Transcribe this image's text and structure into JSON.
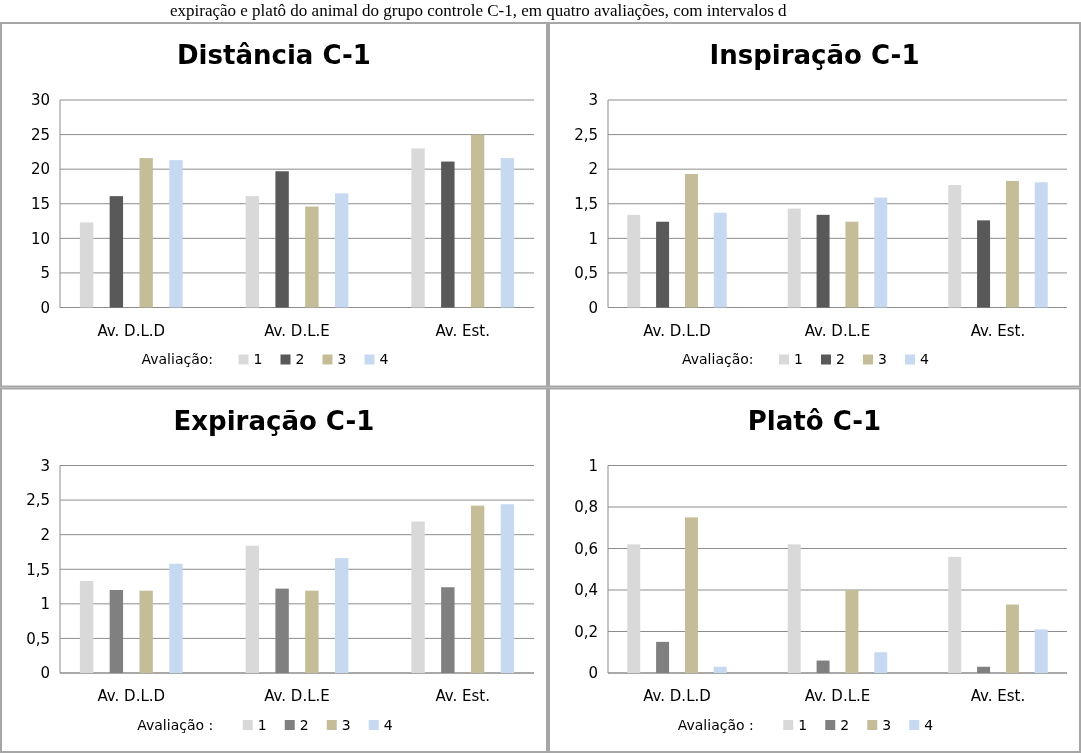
{
  "chart_data": [
    {
      "type": "bar",
      "title": "Distância C-1",
      "annotations": [
        "expiração e platô do animal do grupo controle C-1, em quatro avaliações, com intervalos d"
      ],
      "categories": [
        "Av. D.L.D",
        "Av. D.L.E",
        "Av. Est."
      ],
      "legend_title": "Avaliação:",
      "legend": "bottom",
      "grid": "y",
      "ylim": [
        0,
        30
      ],
      "yticks": [
        0,
        5,
        10,
        15,
        20,
        25,
        30
      ],
      "series": [
        {
          "name": "1",
          "color": "#d9d9d9",
          "values": [
            12.3,
            16.1,
            23
          ]
        },
        {
          "name": "2",
          "color": "#595959",
          "values": [
            16.1,
            19.7,
            21.1
          ]
        },
        {
          "name": "3",
          "color": "#c4bd97",
          "values": [
            21.6,
            14.6,
            25
          ]
        },
        {
          "name": "4",
          "color": "#c6d9f1",
          "values": [
            21.3,
            16.5,
            21.6
          ]
        }
      ]
    },
    {
      "type": "bar",
      "title": "Inspiração C-1",
      "categories": [
        "Av. D.L.D",
        "Av. D.L.E",
        "Av. Est."
      ],
      "legend_title": "Avaliação:",
      "legend": "bottom",
      "grid": "y",
      "ylim": [
        0,
        3
      ],
      "yticks": [
        0,
        {
          "value": 0.5,
          "label": "0,5"
        },
        1,
        {
          "value": 1.5,
          "label": "1,5"
        },
        2,
        {
          "value": 2.5,
          "label": "2,5"
        },
        3
      ],
      "series": [
        {
          "name": "1",
          "color": "#d9d9d9",
          "values": [
            1.34,
            1.43,
            1.77
          ]
        },
        {
          "name": "2",
          "color": "#595959",
          "values": [
            1.24,
            1.34,
            1.26
          ]
        },
        {
          "name": "3",
          "color": "#c4bd97",
          "values": [
            1.93,
            1.24,
            1.83
          ]
        },
        {
          "name": "4",
          "color": "#c6d9f1",
          "values": [
            1.37,
            1.59,
            1.81
          ]
        }
      ]
    },
    {
      "type": "bar",
      "title": "Expiração C-1",
      "categories": [
        "Av. D.L.D",
        "Av. D.L.E",
        "Av. Est."
      ],
      "legend_title": "Avaliação :",
      "legend": "bottom",
      "grid": "y",
      "ylim": [
        0,
        3
      ],
      "yticks": [
        0,
        {
          "value": 0.5,
          "label": "0,5"
        },
        1,
        {
          "value": 1.5,
          "label": "1,5"
        },
        2,
        {
          "value": 2.5,
          "label": "2,5"
        },
        3
      ],
      "series": [
        {
          "name": "1",
          "color": "#d9d9d9",
          "values": [
            1.33,
            1.84,
            2.19
          ]
        },
        {
          "name": "2",
          "color": "#808080",
          "values": [
            1.2,
            1.22,
            1.24
          ]
        },
        {
          "name": "3",
          "color": "#c4bd97",
          "values": [
            1.19,
            1.19,
            2.42
          ]
        },
        {
          "name": "4",
          "color": "#c6d9f1",
          "values": [
            1.58,
            1.66,
            2.44
          ]
        }
      ]
    },
    {
      "type": "bar",
      "title": "Platô C-1",
      "categories": [
        "Av. D.L.D",
        "Av. D.L.E",
        "Av. Est."
      ],
      "legend_title": "Avaliação :",
      "legend": "bottom",
      "grid": "y",
      "ylim": [
        0,
        1
      ],
      "yticks": [
        {
          "value": 0,
          "label": "0"
        },
        {
          "value": 0.2,
          "label": "0,2"
        },
        {
          "value": 0.4,
          "label": "0,4"
        },
        {
          "value": 0.6,
          "label": "0,6"
        },
        {
          "value": 0.8,
          "label": "0,8"
        },
        {
          "value": 1,
          "label": "1"
        }
      ],
      "series": [
        {
          "name": "1",
          "color": "#d9d9d9",
          "values": [
            0.62,
            0.62,
            0.56
          ]
        },
        {
          "name": "2",
          "color": "#808080",
          "values": [
            0.15,
            0.06,
            0.03
          ]
        },
        {
          "name": "3",
          "color": "#c4bd97",
          "values": [
            0.75,
            0.4,
            0.33
          ]
        },
        {
          "name": "4",
          "color": "#c6d9f1",
          "values": [
            0.03,
            0.1,
            0.21
          ]
        }
      ]
    }
  ]
}
